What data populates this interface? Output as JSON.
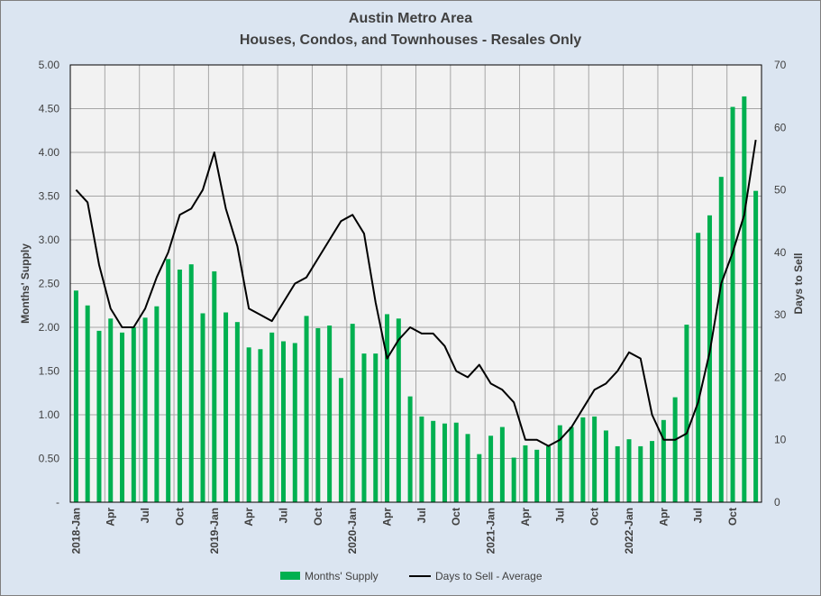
{
  "chart_data": {
    "type": "bar+line",
    "title": "Austin Metro Area",
    "subtitle": "Houses, Condos, and Townhouses - Resales Only",
    "ylabel": "Months' Supply",
    "y2label": "Days to Sell",
    "ylim": [
      0,
      5
    ],
    "y2lim": [
      0,
      70
    ],
    "yticks": [
      "-",
      "0.50",
      "1.00",
      "1.50",
      "2.00",
      "2.50",
      "3.00",
      "3.50",
      "4.00",
      "4.50",
      "5.00"
    ],
    "y2ticks": [
      "0",
      "10",
      "20",
      "30",
      "40",
      "50",
      "60",
      "70"
    ],
    "xtick_labels": [
      "2018-Jan",
      "Apr",
      "Jul",
      "Oct",
      "2019-Jan",
      "Apr",
      "Jul",
      "Oct",
      "2020-Jan",
      "Apr",
      "Jul",
      "Oct",
      "2021-Jan",
      "Apr",
      "Jul",
      "Oct",
      "2022-Jan",
      "Apr",
      "Jul",
      "Oct"
    ],
    "grid": true,
    "legend_position": "bottom",
    "series": [
      {
        "name": "Months' Supply",
        "type": "bar",
        "color": "#00b050",
        "values": [
          2.42,
          2.25,
          1.96,
          2.1,
          1.94,
          2.0,
          2.11,
          2.24,
          2.78,
          2.66,
          2.72,
          2.16,
          2.64,
          2.17,
          2.06,
          1.77,
          1.75,
          1.94,
          1.84,
          1.82,
          2.13,
          1.99,
          2.02,
          1.42,
          2.04,
          1.7,
          1.7,
          2.15,
          2.1,
          1.21,
          0.98,
          0.93,
          0.9,
          0.91,
          0.78,
          0.55,
          0.76,
          0.86,
          0.51,
          0.65,
          0.6,
          0.64,
          0.88,
          0.86,
          0.97,
          0.98,
          0.82,
          0.64,
          0.72,
          0.64,
          0.7,
          0.94,
          1.2,
          2.03,
          3.08,
          3.28,
          3.72,
          4.52,
          4.64,
          3.56
        ]
      },
      {
        "name": "Days to Sell - Average",
        "type": "line",
        "color": "#000000",
        "axis": "right",
        "values": [
          50,
          48,
          38,
          31,
          28,
          28,
          31,
          36,
          40,
          46,
          47,
          50,
          56,
          47,
          41,
          31,
          30,
          29,
          32,
          35,
          36,
          39,
          42,
          45,
          46,
          43,
          32,
          23,
          26,
          28,
          27,
          27,
          25,
          21,
          20,
          22,
          19,
          18,
          16,
          10,
          10,
          9,
          10,
          12,
          15,
          18,
          19,
          21,
          24,
          23,
          14,
          10,
          10,
          11,
          16,
          24,
          35,
          40,
          46,
          58
        ]
      }
    ]
  }
}
